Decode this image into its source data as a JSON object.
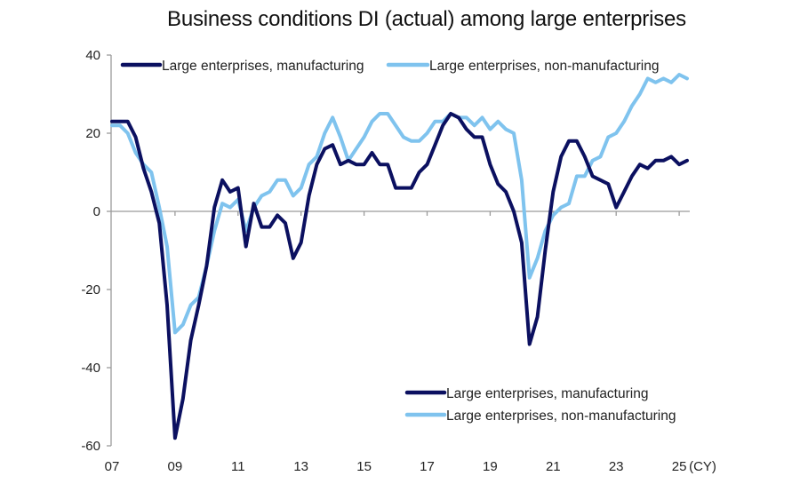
{
  "chart_data": {
    "type": "line",
    "title": "Business conditions DI (actual) among large enterprises",
    "xlabel": "",
    "ylabel": "",
    "x_unit_label": "(CY)",
    "frequency": "quarterly",
    "x_start": "2007Q1",
    "x_end": "2025Q2",
    "x_tick_labels": [
      "07",
      "09",
      "11",
      "13",
      "15",
      "17",
      "19",
      "21",
      "23",
      "25"
    ],
    "y_tick_labels": [
      "40",
      "20",
      "0",
      "-20",
      "-40",
      "-60"
    ],
    "ylim": [
      -60,
      40
    ],
    "grid": false,
    "legend": [
      "top-left",
      "bottom-right"
    ],
    "colors": {
      "manufacturing": "#0b1060",
      "non_manufacturing": "#7fc3ee",
      "axis": "#9a9a9a"
    },
    "series": [
      {
        "name": "Large enterprises, manufacturing",
        "values": [
          23,
          23,
          23,
          19,
          11,
          5,
          -3,
          -24,
          -58,
          -48,
          -33,
          -24,
          -14,
          1,
          8,
          5,
          6,
          -9,
          2,
          -4,
          -4,
          -1,
          -3,
          -12,
          -8,
          4,
          12,
          16,
          17,
          12,
          13,
          12,
          12,
          15,
          12,
          12,
          6,
          6,
          6,
          10,
          12,
          17,
          22,
          25,
          24,
          21,
          19,
          19,
          12,
          7,
          5,
          0,
          -8,
          -34,
          -27,
          -10,
          5,
          14,
          18,
          18,
          14,
          9,
          8,
          7,
          1,
          5,
          9,
          12,
          11,
          13,
          13,
          14,
          12,
          13
        ]
      },
      {
        "name": "Large enterprises, non-manufacturing",
        "values": [
          22,
          22,
          20,
          15,
          12,
          10,
          1,
          -9,
          -31,
          -29,
          -24,
          -22,
          -14,
          -5,
          2,
          1,
          3,
          -5,
          1,
          4,
          5,
          8,
          8,
          4,
          6,
          12,
          14,
          20,
          24,
          19,
          13,
          16,
          19,
          23,
          25,
          25,
          22,
          19,
          18,
          18,
          20,
          23,
          23,
          25,
          24,
          24,
          22,
          24,
          21,
          23,
          21,
          20,
          8,
          -17,
          -12,
          -5,
          -1,
          1,
          2,
          9,
          9,
          13,
          14,
          19,
          20,
          23,
          27,
          30,
          34,
          33,
          34,
          33,
          35,
          34
        ]
      }
    ]
  }
}
